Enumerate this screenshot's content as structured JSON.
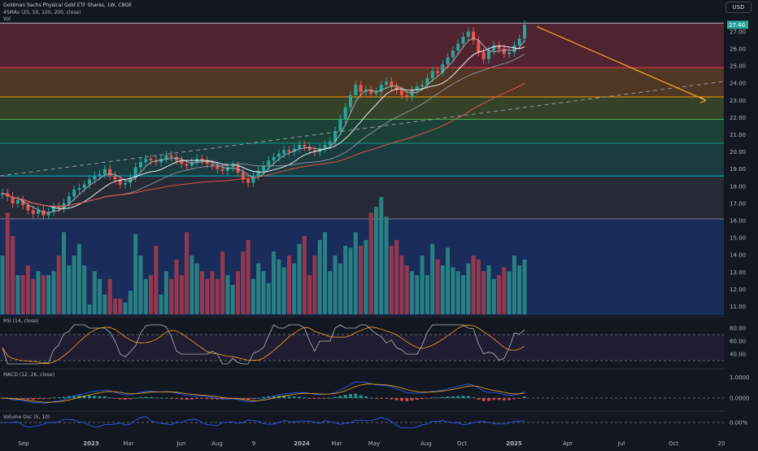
{
  "header": {
    "title": "Goldman Sachs Physical Gold ETF Shares, 1W, CBOE",
    "indicator_ma": "4SMAs (20, 50, 100, 200, close)",
    "indicator_vol": "Vol"
  },
  "currency": "USD",
  "price_axis": {
    "ticks": [
      "27.00",
      "26.00",
      "25.00",
      "24.00",
      "23.00",
      "22.00",
      "21.00",
      "20.00",
      "19.00",
      "18.00",
      "17.00",
      "16.00",
      "15.00",
      "14.00",
      "13.00",
      "12.00",
      "11.00"
    ],
    "last_price": "27.40"
  },
  "time_axis": [
    "Sep",
    "2023",
    "Mar",
    "Jun",
    "Aug",
    "9",
    "2024",
    "Mar",
    "May",
    "Aug",
    "Oct",
    "2025",
    "Apr",
    "Jul",
    "Oct",
    "20"
  ],
  "rsi": {
    "label": "RSI (14, close)",
    "ticks": [
      "80.00",
      "60.00",
      "40.00"
    ]
  },
  "macd": {
    "label": "MACD (12, 26, close)",
    "ticks": [
      "1.0000",
      "0.0000"
    ]
  },
  "volosc": {
    "label": "Volume Osc (5, 10)",
    "ticks": [
      "0.00%"
    ]
  },
  "colors": {
    "bull": "#26a69a",
    "bear": "#ef5350",
    "zone_red": "#5c2634",
    "zone_orange": "#5a3d25",
    "zone_olive": "#3a4a2a",
    "zone_green": "#1f4a3b",
    "zone_teal": "#1c4245",
    "zone_gray": "#2a2e39",
    "zone_blue": "#1a2d5a",
    "arrow": "#f5a623"
  },
  "chart_data": {
    "type": "candlestick",
    "interval": "1W",
    "ylim": [
      10.5,
      27.8
    ],
    "fib_levels": [
      27.5,
      24.9,
      23.2,
      21.9,
      20.5,
      18.6,
      16.1
    ],
    "weekly_closes": [
      17.6,
      17.4,
      17.0,
      17.2,
      16.9,
      16.6,
      16.4,
      16.6,
      16.3,
      16.5,
      16.8,
      16.7,
      17.0,
      17.4,
      17.8,
      17.9,
      18.1,
      18.4,
      18.6,
      18.7,
      19.0,
      18.6,
      18.4,
      18.1,
      18.2,
      18.5,
      19.1,
      19.4,
      19.6,
      19.5,
      19.4,
      19.6,
      19.8,
      19.7,
      19.5,
      19.3,
      19.2,
      19.4,
      19.6,
      19.5,
      19.3,
      19.2,
      19.0,
      18.9,
      19.1,
      19.2,
      18.8,
      18.4,
      18.2,
      18.6,
      18.9,
      19.2,
      19.5,
      19.7,
      19.9,
      20.1,
      20.0,
      20.2,
      20.4,
      20.3,
      20.1,
      20.0,
      20.2,
      20.4,
      20.6,
      21.2,
      21.9,
      22.6,
      23.3,
      23.9,
      23.5,
      23.6,
      23.4,
      23.5,
      23.9,
      24.1,
      23.8,
      23.6,
      23.3,
      23.2,
      23.6,
      23.8,
      23.9,
      24.3,
      24.7,
      24.6,
      25.1,
      25.5,
      25.9,
      26.3,
      26.7,
      27.0,
      26.5,
      25.8,
      25.4,
      25.9,
      26.2,
      26.0,
      25.7,
      25.8,
      26.2,
      26.6,
      27.4
    ],
    "volume_relative": [
      0.3,
      0.52,
      0.4,
      0.2,
      0.2,
      0.25,
      0.18,
      0.22,
      0.2,
      0.2,
      0.22,
      0.3,
      0.42,
      0.25,
      0.3,
      0.36,
      0.25,
      0.05,
      0.22,
      0.18,
      0.1,
      0.18,
      0.08,
      0.08,
      0.06,
      0.12,
      0.41,
      0.3,
      0.18,
      0.2,
      0.35,
      0.1,
      0.22,
      0.18,
      0.28,
      0.2,
      0.42,
      0.3,
      0.26,
      0.22,
      0.18,
      0.22,
      0.18,
      0.32,
      0.2,
      0.15,
      0.22,
      0.32,
      0.38,
      0.18,
      0.26,
      0.22,
      0.16,
      0.32,
      0.28,
      0.24,
      0.3,
      0.26,
      0.36,
      0.4,
      0.2,
      0.3,
      0.38,
      0.42,
      0.22,
      0.3,
      0.26,
      0.35,
      0.34,
      0.42,
      0.35,
      0.38,
      0.52,
      0.55,
      0.6,
      0.5,
      0.35,
      0.38,
      0.3,
      0.25,
      0.22,
      0.2,
      0.3,
      0.2,
      0.36,
      0.28,
      0.25,
      0.34,
      0.24,
      0.22,
      0.2,
      0.26,
      0.3,
      0.28,
      0.22,
      0.25,
      0.18,
      0.2,
      0.24,
      0.22,
      0.3,
      0.25,
      0.28
    ],
    "rsi_ylim": [
      20,
      90
    ],
    "annotations": [
      "descending arrow from Dec 2024 high to 23.00 zone",
      "dashed ascending trendline"
    ]
  }
}
